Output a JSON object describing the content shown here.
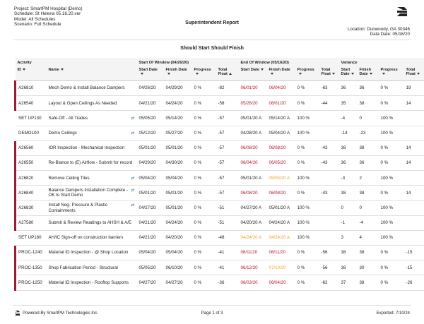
{
  "header": {
    "project": "Project: SmartPM Hospital (Demo)",
    "schedule": "Schedule: St Helena 05.16.20.xer",
    "model": "Model: All Schedules",
    "scenario": "Scenario: Full Schedule",
    "title": "Superintendent Report",
    "location": "Location: Dunwoody, GA 30346",
    "data_date": "Data Date: 05/16/20"
  },
  "subtitle": "Should Start Should Finish",
  "table": {
    "groups": [
      "Activity",
      "Start Of Window (04/26/20)",
      "End Of Window (05/16/20)",
      "Variance"
    ],
    "columns": [
      "ID",
      "Name",
      "Start Date",
      "Finish Date",
      "Progress",
      "Total Float",
      "Start Date",
      "Finish Date",
      "Progress",
      "Total Float",
      "Start",
      "Finish",
      "Progress",
      "Total"
    ],
    "column_subs": [
      null,
      null,
      null,
      null,
      null,
      null,
      null,
      null,
      null,
      null,
      "Date",
      "Date",
      null,
      "Float"
    ],
    "sorted_column": 5,
    "rows": [
      {
        "flagged": true,
        "linked": false,
        "cells": [
          "A26810",
          "Mech Demo & Install Balance Dampers",
          "04/26/20",
          "04/29/20",
          "0 %",
          "-82",
          {
            "text": "06/01/20",
            "color": "#b3142b"
          },
          {
            "text": "06/04/20",
            "color": "#b3142b"
          },
          "0 %",
          "-63",
          "36",
          "36",
          "0 %",
          "19"
        ]
      },
      {
        "flagged": true,
        "linked": false,
        "cells": [
          "A26540",
          "Layout & Open Ceilings As Needed",
          "04/21/20",
          "04/24/20",
          "0 %",
          "-58",
          {
            "text": "05/26/20",
            "color": "#b3142b"
          },
          {
            "text": "06/01/20",
            "color": "#b3142b"
          },
          "0 %",
          "-44",
          "35",
          "38",
          "0 %",
          "14"
        ]
      },
      {
        "flagged": false,
        "linked": true,
        "cells": [
          "SET UP130",
          "Safe-Off - All Trades",
          "05/05/20",
          "05/14/20",
          "0 %",
          "-57",
          "05/01/20 A",
          "05/14/20 A",
          "100 %",
          null,
          "-4",
          "0",
          "100 %",
          null
        ]
      },
      {
        "flagged": false,
        "linked": true,
        "cells": [
          "DEMO100",
          "Demo Ceilings",
          "05/12/20",
          "05/27/20",
          "0 %",
          "-57",
          "04/28/20 A",
          "05/04/20 A",
          "100 %",
          null,
          "-14",
          "-23",
          "100 %",
          null
        ]
      },
      {
        "flagged": true,
        "linked": false,
        "cells": [
          "A26560",
          "IOR Inspection - Mechanical Inspection",
          "05/01/20",
          "05/01/20",
          "0 %",
          "-57",
          {
            "text": "06/08/20",
            "color": "#b3142b"
          },
          {
            "text": "06/08/20",
            "color": "#b3142b"
          },
          "0 %",
          "-43",
          "38",
          "38",
          "0 %",
          "14"
        ]
      },
      {
        "flagged": true,
        "linked": false,
        "cells": [
          "A26550",
          "Re-Blance to (E) Airflow - Submit for record",
          "04/29/20",
          "04/30/20",
          "0 %",
          "-57",
          {
            "text": "06/04/20",
            "color": "#b3142b"
          },
          {
            "text": "06/05/20",
            "color": "#b3142b"
          },
          "0 %",
          "-43",
          "36",
          "36",
          "0 %",
          "14"
        ]
      },
      {
        "flagged": true,
        "linked": true,
        "cells": [
          "A26820",
          "Remove Ceiling Tiles",
          "05/04/20",
          "05/04/20",
          "0 %",
          "-57",
          "05/01/20 A",
          {
            "text": "05/05/20 A",
            "color": "#f0a22e"
          },
          "100 %",
          null,
          "-3",
          "2",
          "100 %",
          null
        ]
      },
      {
        "flagged": true,
        "linked": true,
        "cells": [
          "A26840",
          "Balance Dampers Installation Complete - OK to Start Demo",
          "05/01/20",
          "05/01/20",
          "0 %",
          "-57",
          {
            "text": "06/08/20",
            "color": "#b3142b"
          },
          {
            "text": "06/08/20",
            "color": "#b3142b"
          },
          "0 %",
          "-43",
          "38",
          "38",
          "0 %",
          "14"
        ]
      },
      {
        "flagged": true,
        "linked": true,
        "cells": [
          "A26830",
          "Install Neg- Pressure & Plastic Containments",
          "04/27/20",
          "05/01/20",
          "0 %",
          "-51",
          "04/27/20 A",
          "05/01/20 A",
          "100 %",
          null,
          "0",
          "0",
          "100 %",
          null
        ]
      },
      {
        "flagged": true,
        "linked": false,
        "cells": [
          "A27580",
          "Submit & Review Readings to AHSH & A/E",
          "04/21/20",
          "04/24/20",
          "0 %",
          "-51",
          "04/20/20 A",
          "04/24/20 A",
          "100 %",
          null,
          "-1",
          "-4",
          "100 %",
          null
        ]
      },
      {
        "flagged": false,
        "linked": false,
        "cells": [
          "SET UP180",
          "AH/IC Sign-off on construction barriers",
          "04/21/20",
          "04/20/20",
          "0 %",
          "-48",
          {
            "text": "04/24/20 A",
            "color": "#f0a22e"
          },
          {
            "text": "04/24/20 A",
            "color": "#f0a22e"
          },
          "100 %",
          null,
          "3",
          "4",
          "100 %",
          null
        ]
      },
      {
        "flagged": true,
        "linked": false,
        "cells": [
          "PROC-1240",
          "Material ID Inspection - @ Shop Location",
          "05/04/20",
          "05/04/20",
          "0 %",
          "-41",
          {
            "text": "06/11/20",
            "color": "#b3142b"
          },
          {
            "text": "06/11/20",
            "color": "#b3142b"
          },
          "0 %",
          "-56",
          "38",
          "38",
          "0 %",
          "-15"
        ]
      },
      {
        "flagged": true,
        "linked": false,
        "cells": [
          "PROC-1350",
          "Shop Fabrication Period - Structural",
          "05/05/20",
          "06/10/20",
          "0 %",
          "-41",
          {
            "text": "06/12/20",
            "color": "#b3142b"
          },
          {
            "text": "07/10/20",
            "color": "#f0a22e"
          },
          "0 %",
          "-56",
          "38",
          "30",
          "0 %",
          "-15"
        ]
      },
      {
        "flagged": true,
        "linked": false,
        "cells": [
          "PROC-1250",
          "Material ID Inspection - Rooftop Supports",
          "04/27/20",
          "04/27/20",
          "0 %",
          "-36",
          {
            "text": "06/03/20",
            "color": "#b3142b"
          },
          {
            "text": "06/04/20",
            "color": "#b3142b"
          },
          "0 %",
          "-62",
          "37",
          "38",
          "0 %",
          "-26"
        ]
      }
    ]
  },
  "footer": {
    "powered": "Powered By SmartPM Technologies Inc.",
    "page": "Page 1 of 3",
    "exported": "Exported: 7/10/24"
  }
}
